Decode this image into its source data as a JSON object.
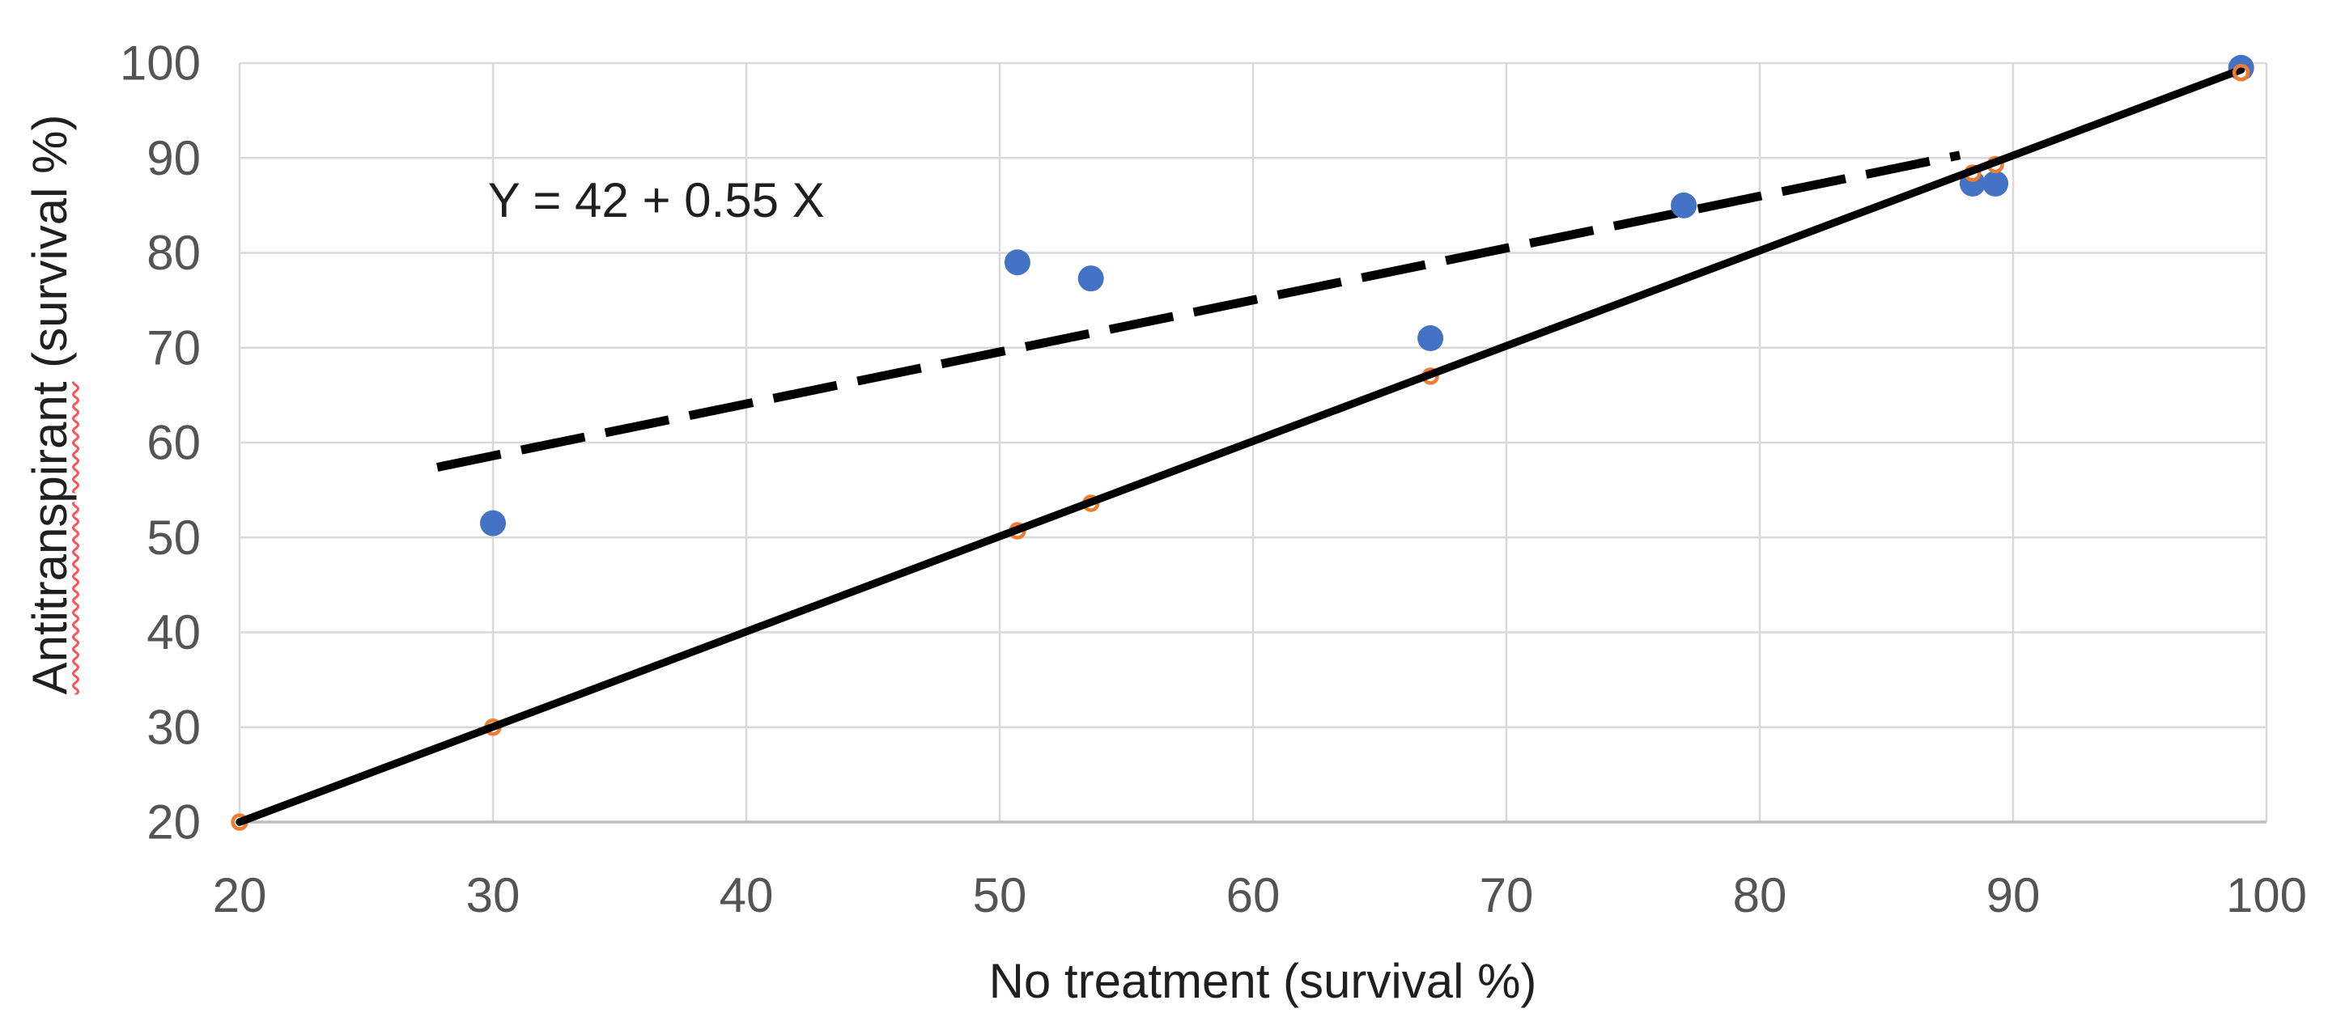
{
  "chart_data": {
    "type": "scatter",
    "title": "",
    "xlabel": "No treatment (survival %)",
    "ylabel_word": "Antitranspirant",
    "ylabel_rest": " (survival %)",
    "xlim": [
      20,
      100
    ],
    "ylim": [
      20,
      100
    ],
    "x_ticks": [
      20,
      30,
      40,
      50,
      60,
      70,
      80,
      90,
      100
    ],
    "y_ticks": [
      20,
      30,
      40,
      50,
      60,
      70,
      80,
      90,
      100
    ],
    "grid": true,
    "legend": "none",
    "annotation": {
      "text": "Y = 42 + 0.55 X",
      "x": 29.8,
      "y": 83.8
    },
    "series": [
      {
        "name": "antitranspirant-points",
        "type": "scatter",
        "marker": "filled-circle",
        "color": "#4472C4",
        "points": [
          [
            30,
            51.5
          ],
          [
            50.7,
            79
          ],
          [
            53.6,
            77.3
          ],
          [
            67,
            71
          ],
          [
            77,
            85
          ],
          [
            88.4,
            87.3
          ],
          [
            89.3,
            87.3
          ],
          [
            99,
            99.5
          ]
        ]
      },
      {
        "name": "identity-reference",
        "type": "scatter-with-line",
        "marker": "open-circle",
        "color": "#ED7D31",
        "line_style": "solid",
        "line_color": "#000000",
        "line_from": [
          20,
          20
        ],
        "line_to": [
          99,
          99.3
        ],
        "points": [
          [
            20,
            20
          ],
          [
            30,
            30
          ],
          [
            50.7,
            50.7
          ],
          [
            53.6,
            53.6
          ],
          [
            67,
            67
          ],
          [
            88.4,
            88.4
          ],
          [
            89.3,
            89.3
          ],
          [
            99,
            99
          ]
        ]
      },
      {
        "name": "regression-line",
        "type": "line",
        "line_style": "dashed",
        "color": "#000000",
        "equation": "Y = 42 + 0.55 X",
        "from": [
          27.8,
          57.4
        ],
        "to": [
          87.9,
          90.3
        ]
      }
    ],
    "colors": {
      "point_blue": "#4472C4",
      "marker_orange": "#ED7D31",
      "line_black": "#000000",
      "gridline": "#D9D9D9",
      "axis_line": "#BDBDBD",
      "tick_text": "#545454",
      "title_text": "#1F1F1F",
      "spellcheck_red": "#FF5257",
      "background": "#FFFFFF"
    }
  }
}
